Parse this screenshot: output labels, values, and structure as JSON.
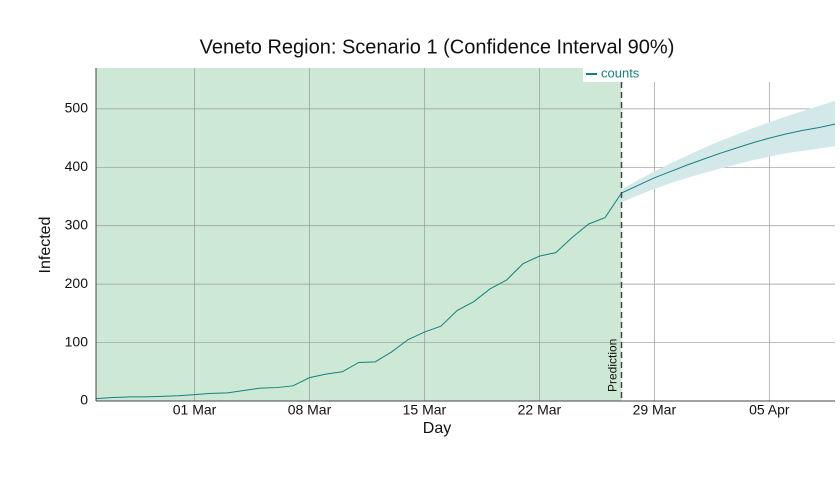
{
  "chart_data": {
    "type": "line",
    "title": "Veneto Region: Scenario 1 (Confidence Interval 90%)",
    "x_label": "Day",
    "y_label": "Infected",
    "categories": [
      null,
      null,
      null,
      null,
      null,
      null,
      "01 Mar",
      null,
      null,
      null,
      null,
      null,
      null,
      "08 Mar",
      null,
      null,
      null,
      null,
      null,
      null,
      "15 Mar",
      null,
      null,
      null,
      null,
      null,
      null,
      "22 Mar",
      null,
      null,
      null,
      null,
      null,
      null,
      "29 Mar",
      null,
      null,
      null,
      null,
      null,
      null,
      "05 Apr",
      null,
      null,
      null,
      null
    ],
    "series": [
      {
        "name": "counts",
        "color": "#168080",
        "values": [
          4,
          6,
          7,
          7,
          8,
          9,
          11,
          13,
          14,
          18,
          22,
          23,
          26,
          40,
          46,
          50,
          66,
          67,
          84,
          105,
          118,
          128,
          155,
          170,
          192,
          207,
          235,
          248,
          254,
          280,
          303,
          314,
          356,
          369,
          382,
          393,
          404,
          414,
          424,
          433,
          442,
          450,
          457,
          463,
          468,
          474
        ]
      }
    ],
    "interval": {
      "color": "#d3e9e9",
      "lower": [
        null,
        null,
        null,
        null,
        null,
        null,
        null,
        null,
        null,
        null,
        null,
        null,
        null,
        null,
        null,
        null,
        null,
        null,
        null,
        null,
        null,
        null,
        null,
        null,
        null,
        null,
        null,
        null,
        null,
        null,
        null,
        null,
        340,
        352,
        363,
        373,
        382,
        390,
        398,
        405,
        412,
        418,
        424,
        428,
        432,
        436
      ],
      "upper": [
        null,
        null,
        null,
        null,
        null,
        null,
        null,
        null,
        null,
        null,
        null,
        null,
        null,
        null,
        null,
        null,
        null,
        null,
        null,
        null,
        null,
        null,
        null,
        null,
        null,
        null,
        null,
        null,
        null,
        null,
        null,
        null,
        362,
        378,
        393,
        407,
        420,
        433,
        445,
        456,
        467,
        477,
        487,
        496,
        505,
        514
      ]
    },
    "annotation": "Prediction",
    "observed_color": "#cde9d6",
    "ylim": [
      0,
      570
    ],
    "yticks": [
      0,
      100,
      200,
      300,
      400,
      500
    ],
    "grid": true
  }
}
